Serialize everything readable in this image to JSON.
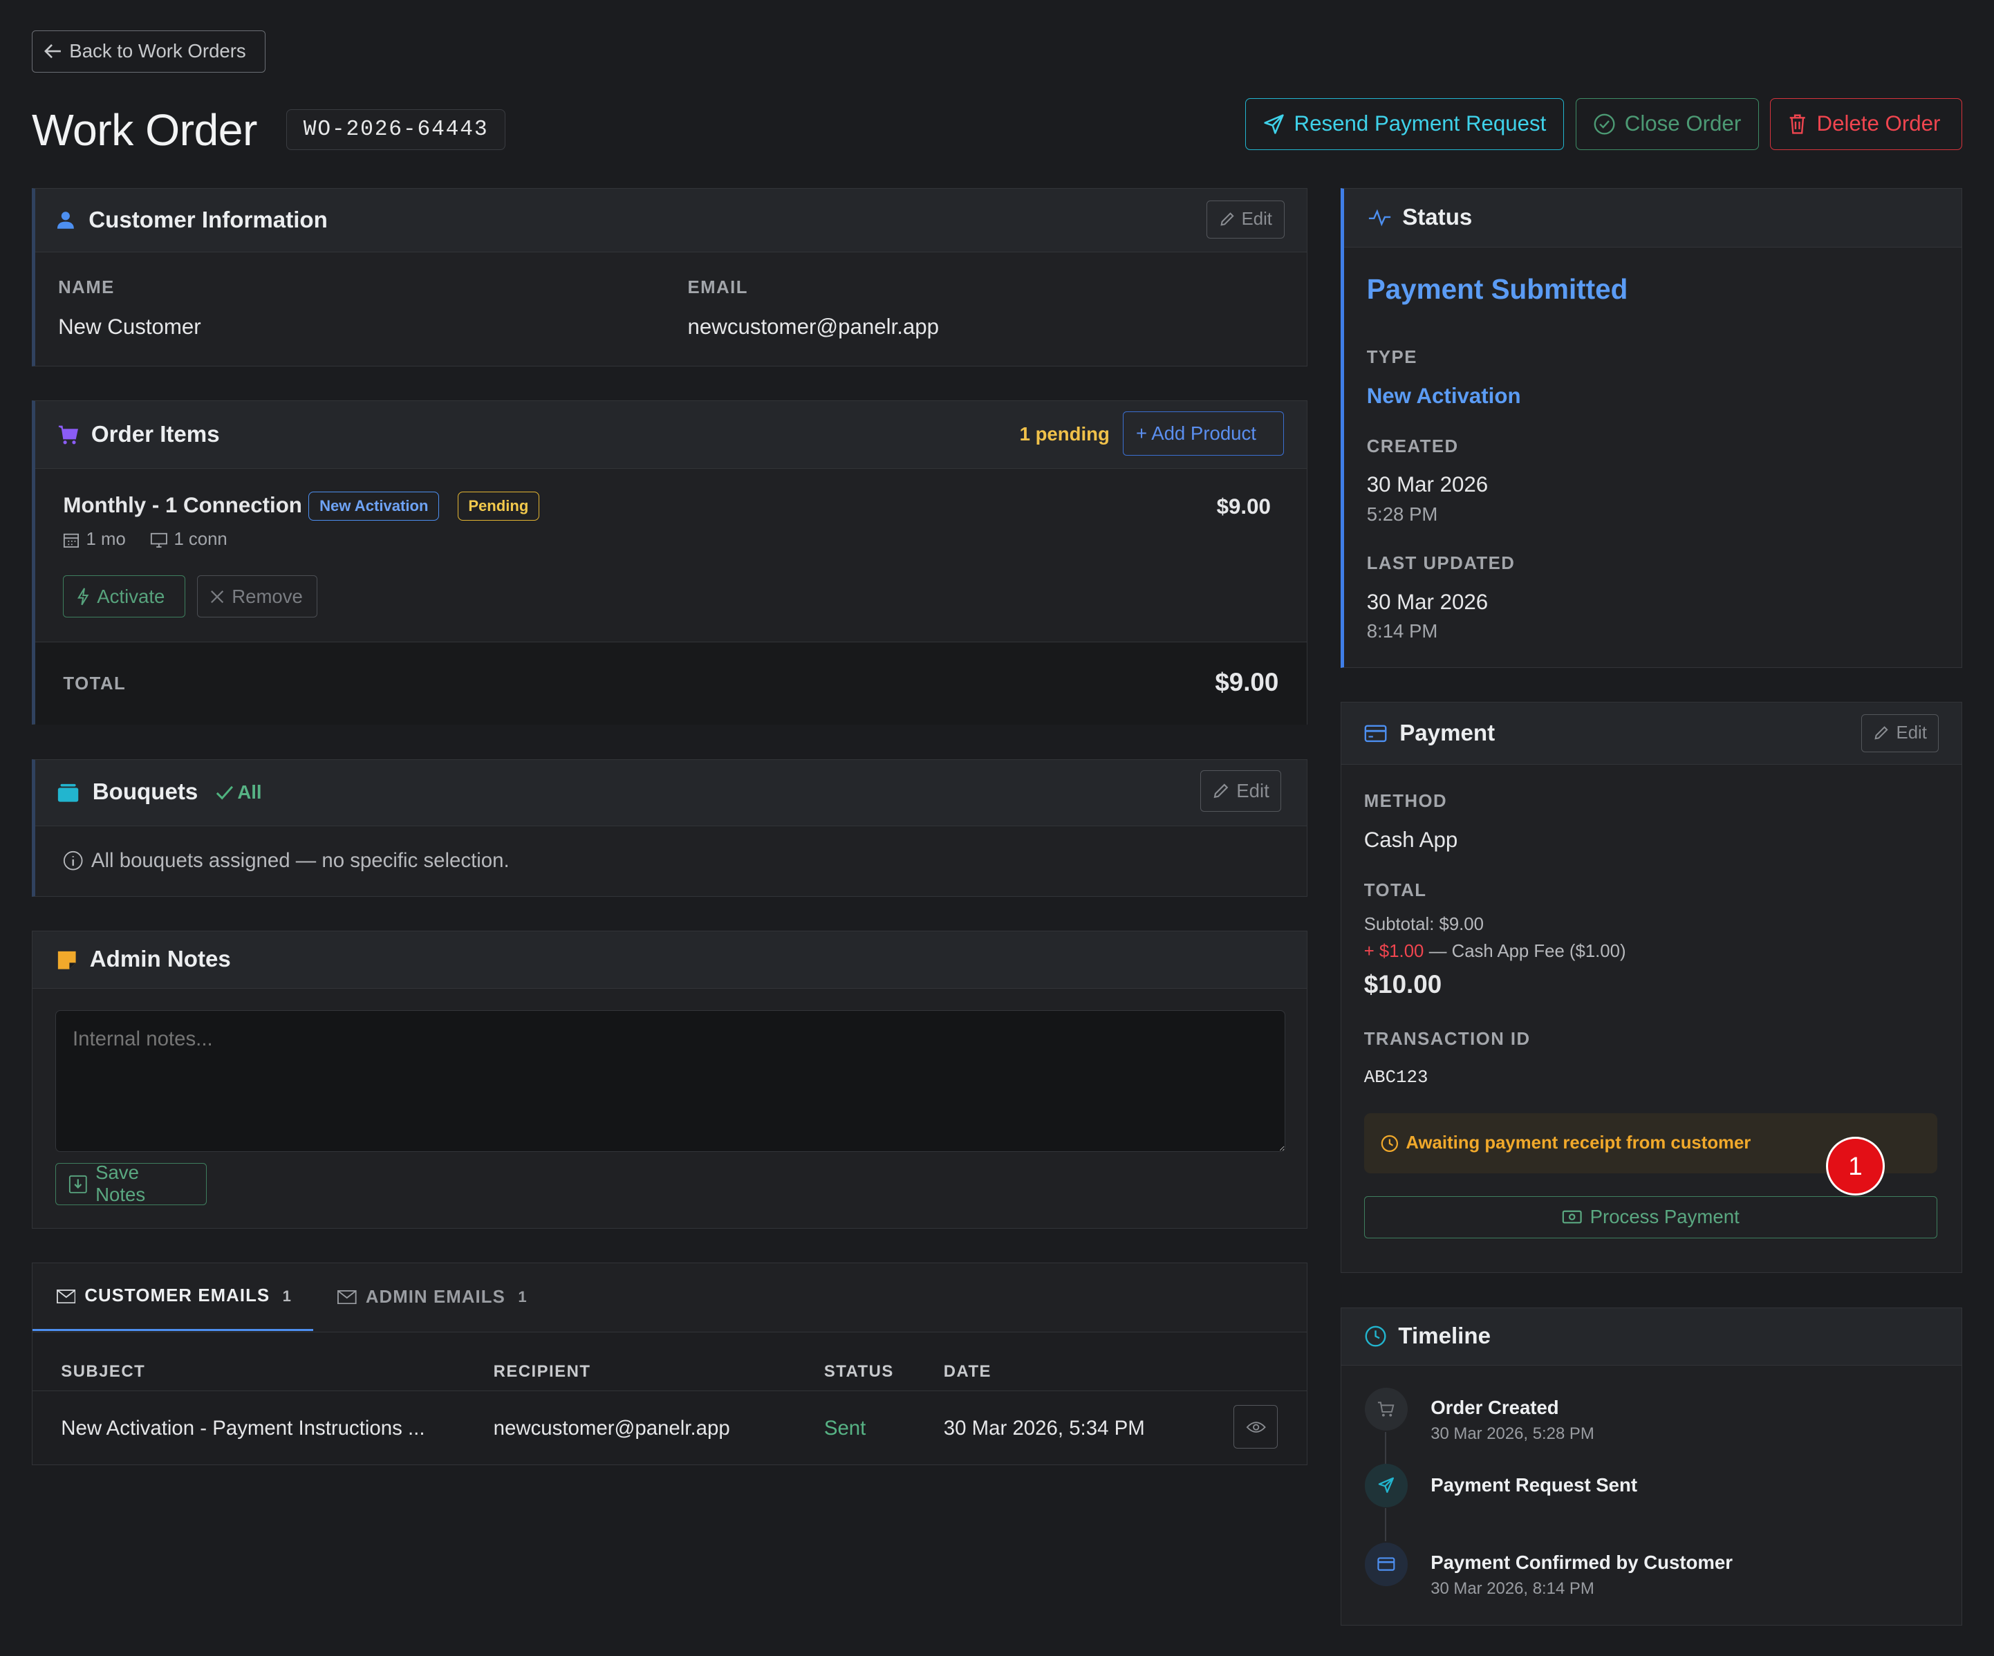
{
  "header": {
    "back_label": "Back to Work Orders",
    "title": "Work Order",
    "order_id": "WO-2026-64443",
    "resend_label": "Resend Payment Request",
    "close_label": "Close Order",
    "delete_label": "Delete Order"
  },
  "customer": {
    "title": "Customer Information",
    "edit_label": "Edit",
    "name_label": "NAME",
    "name": "New Customer",
    "email_label": "EMAIL",
    "email": "newcustomer@panelr.app"
  },
  "order_items": {
    "title": "Order Items",
    "pending_count": "1 pending",
    "add_label": "+ Add Product",
    "items": [
      {
        "name": "Monthly - 1 Connection",
        "type_badge": "New Activation",
        "status_badge": "Pending",
        "duration": "1 mo",
        "connections": "1 conn",
        "price": "$9.00",
        "activate_label": "Activate",
        "remove_label": "Remove"
      }
    ],
    "total_label": "TOTAL",
    "total": "$9.00"
  },
  "bouquets": {
    "title": "Bouquets",
    "all_label": "All",
    "edit_label": "Edit",
    "info": "All bouquets assigned — no specific selection."
  },
  "admin_notes": {
    "title": "Admin Notes",
    "placeholder": "Internal notes...",
    "save_label": "Save Notes"
  },
  "emails": {
    "tabs": [
      {
        "label": "CUSTOMER EMAILS",
        "count": "1"
      },
      {
        "label": "ADMIN EMAILS",
        "count": "1"
      }
    ],
    "columns": [
      "SUBJECT",
      "RECIPIENT",
      "STATUS",
      "DATE"
    ],
    "rows": [
      {
        "subject": "New Activation - Payment Instructions ...",
        "recipient": "newcustomer@panelr.app",
        "status": "Sent",
        "date": "30 Mar 2026, 5:34 PM"
      }
    ]
  },
  "status": {
    "title": "Status",
    "value": "Payment Submitted",
    "type_label": "TYPE",
    "type": "New Activation",
    "created_label": "CREATED",
    "created_date": "30 Mar 2026",
    "created_time": "5:28 PM",
    "updated_label": "LAST UPDATED",
    "updated_date": "30 Mar 2026",
    "updated_time": "8:14 PM"
  },
  "payment": {
    "title": "Payment",
    "edit_label": "Edit",
    "method_label": "METHOD",
    "method": "Cash App",
    "total_label": "TOTAL",
    "subtotal": "Subtotal: $9.00",
    "fee_amount": "+ $1.00",
    "fee_desc": "— Cash App Fee ($1.00)",
    "total": "$10.00",
    "txn_label": "TRANSACTION ID",
    "txn_id": "ABC123",
    "awaiting": "Awaiting payment receipt from customer",
    "process_label": "Process Payment",
    "marker": "1"
  },
  "timeline": {
    "title": "Timeline",
    "events": [
      {
        "title": "Order Created",
        "time": "30 Mar 2026, 5:28 PM"
      },
      {
        "title": "Payment Request Sent",
        "time": ""
      },
      {
        "title": "Payment Confirmed by Customer",
        "time": "30 Mar 2026, 8:14 PM"
      }
    ]
  },
  "colors": {
    "background": "#1b1c1f",
    "accent_blue": "#5b9cf5",
    "cyan": "#3fd2ea",
    "green": "#4c9a74",
    "red": "#f0454f",
    "amber": "#f1a92b"
  }
}
